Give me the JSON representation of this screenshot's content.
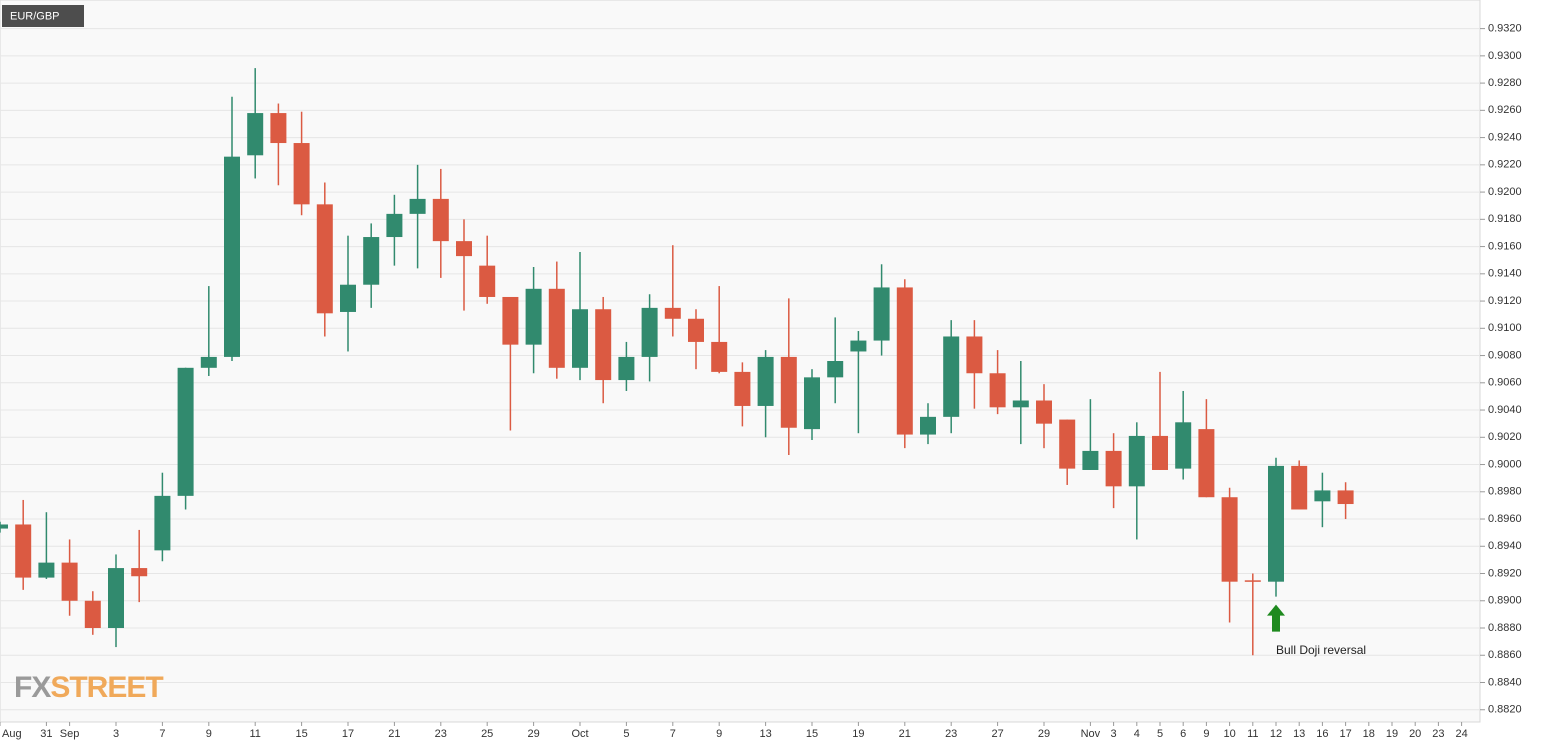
{
  "chart_data": {
    "type": "candlestick",
    "title": "EUR/GBP",
    "brand": [
      "FX",
      "STREET"
    ],
    "categories": [
      "Aug",
      null,
      "31",
      "Sep",
      null,
      "3",
      null,
      "7",
      null,
      "9",
      null,
      "11",
      null,
      "15",
      null,
      "17",
      null,
      "21",
      null,
      "23",
      null,
      "25",
      null,
      "29",
      null,
      "Oct",
      null,
      "5",
      null,
      "7",
      null,
      "9",
      null,
      "13",
      null,
      "15",
      null,
      "19",
      null,
      "21",
      null,
      "23",
      null,
      "27",
      null,
      "29",
      null,
      "Nov",
      "3",
      "4",
      "5",
      "6",
      "9",
      "10",
      "11",
      "12",
      "13",
      "16",
      "17",
      "18",
      "19",
      "20",
      "23",
      "24"
    ],
    "open": [
      0.8953,
      0.8956,
      0.8917,
      0.8928,
      0.89,
      0.888,
      0.8924,
      0.8937,
      0.8977,
      0.9071,
      0.9079,
      0.9227,
      0.9258,
      0.9236,
      0.9191,
      0.9112,
      0.9132,
      0.9167,
      0.9184,
      0.9195,
      0.9164,
      0.9146,
      0.9123,
      0.9088,
      0.9129,
      0.9071,
      0.9114,
      0.9062,
      0.9079,
      0.9115,
      0.9107,
      0.909,
      0.9068,
      0.9043,
      0.9079,
      0.9026,
      0.9064,
      0.9083,
      0.9091,
      0.913,
      0.9022,
      0.9035,
      0.9094,
      0.9067,
      0.9042,
      0.9047,
      0.9033,
      0.8996,
      0.901,
      0.8984,
      0.9021,
      0.8997,
      0.9026,
      0.8976,
      0.8915,
      0.8914,
      0.8999,
      0.8973,
      0.8981,
      null,
      null,
      null,
      null,
      null
    ],
    "high": [
      0.8958,
      0.8974,
      0.8965,
      0.8945,
      0.8907,
      0.8934,
      0.8952,
      0.8994,
      0.9071,
      0.9131,
      0.927,
      0.9291,
      0.9265,
      0.9259,
      0.9207,
      0.9168,
      0.9177,
      0.9198,
      0.922,
      0.9217,
      0.918,
      0.9168,
      0.9123,
      0.9145,
      0.9149,
      0.9156,
      0.9123,
      0.909,
      0.9125,
      0.9161,
      0.9114,
      0.9131,
      0.9075,
      0.9084,
      0.9122,
      0.907,
      0.9108,
      0.9098,
      0.9147,
      0.9136,
      0.9045,
      0.9106,
      0.9106,
      0.9084,
      0.9076,
      0.9059,
      0.9033,
      0.9048,
      0.9023,
      0.9031,
      0.9068,
      0.9054,
      0.9048,
      0.8983,
      0.892,
      0.9005,
      0.9003,
      0.8994,
      0.8987,
      null,
      null,
      null,
      null,
      null
    ],
    "low": [
      0.895,
      0.8908,
      0.8916,
      0.8889,
      0.8875,
      0.8866,
      0.8899,
      0.8929,
      0.8967,
      0.9065,
      0.9076,
      0.921,
      0.9205,
      0.9183,
      0.9094,
      0.9083,
      0.9115,
      0.9146,
      0.9144,
      0.9137,
      0.9113,
      0.9118,
      0.9025,
      0.9067,
      0.9063,
      0.9062,
      0.9045,
      0.9054,
      0.9061,
      0.9094,
      0.907,
      0.9067,
      0.9028,
      0.902,
      0.9007,
      0.9018,
      0.9045,
      0.9023,
      0.908,
      0.9012,
      0.9015,
      0.9023,
      0.9041,
      0.9037,
      0.9015,
      0.9012,
      0.8985,
      0.8996,
      0.8968,
      0.8945,
      0.8996,
      0.8989,
      0.8976,
      0.8884,
      0.886,
      0.8903,
      0.8967,
      0.8954,
      0.896,
      null,
      null,
      null,
      null,
      null
    ],
    "close": [
      0.8956,
      0.8917,
      0.8928,
      0.89,
      0.888,
      0.8924,
      0.8918,
      0.8977,
      0.9071,
      0.9079,
      0.9226,
      0.9258,
      0.9236,
      0.9191,
      0.9111,
      0.9132,
      0.9167,
      0.9184,
      0.9195,
      0.9164,
      0.9153,
      0.9123,
      0.9088,
      0.9129,
      0.9071,
      0.9114,
      0.9062,
      0.9079,
      0.9115,
      0.9107,
      0.909,
      0.9068,
      0.9043,
      0.9079,
      0.9027,
      0.9064,
      0.9076,
      0.9091,
      0.913,
      0.9022,
      0.9035,
      0.9094,
      0.9067,
      0.9042,
      0.9047,
      0.903,
      0.8997,
      0.901,
      0.8984,
      0.9021,
      0.8996,
      0.9031,
      0.8976,
      0.8914,
      0.8914,
      0.8999,
      0.8967,
      0.8981,
      0.8971,
      null,
      null,
      null,
      null,
      null
    ],
    "up_color": "#318a6e",
    "down_color": "#db5a42",
    "ylim": [
      0.8811,
      0.9341
    ],
    "yticks": [
      {
        "value": 0.882,
        "label": "0.8820"
      },
      {
        "value": 0.884,
        "label": "0.8840"
      },
      {
        "value": 0.886,
        "label": "0.8860"
      },
      {
        "value": 0.888,
        "label": "0.8880"
      },
      {
        "value": 0.89,
        "label": "0.8900"
      },
      {
        "value": 0.892,
        "label": "0.8920"
      },
      {
        "value": 0.894,
        "label": "0.8940"
      },
      {
        "value": 0.896,
        "label": "0.8960"
      },
      {
        "value": 0.898,
        "label": "0.8980"
      },
      {
        "value": 0.9,
        "label": "0.9000"
      },
      {
        "value": 0.902,
        "label": "0.9020"
      },
      {
        "value": 0.904,
        "label": "0.9040"
      },
      {
        "value": 0.906,
        "label": "0.9060"
      },
      {
        "value": 0.908,
        "label": "0.9080"
      },
      {
        "value": 0.91,
        "label": "0.9100"
      },
      {
        "value": 0.912,
        "label": "0.9120"
      },
      {
        "value": 0.914,
        "label": "0.9140"
      },
      {
        "value": 0.916,
        "label": "0.9160"
      },
      {
        "value": 0.918,
        "label": "0.9180"
      },
      {
        "value": 0.92,
        "label": "0.9200"
      },
      {
        "value": 0.922,
        "label": "0.9220"
      },
      {
        "value": 0.924,
        "label": "0.9240"
      },
      {
        "value": 0.926,
        "label": "0.9260"
      },
      {
        "value": 0.928,
        "label": "0.9280"
      },
      {
        "value": 0.93,
        "label": "0.9300"
      },
      {
        "value": 0.932,
        "label": "0.9320"
      }
    ],
    "grid": true,
    "annotation": {
      "text": "Bull Doji reversal",
      "index": 55,
      "color": "#1f8a1f"
    }
  }
}
